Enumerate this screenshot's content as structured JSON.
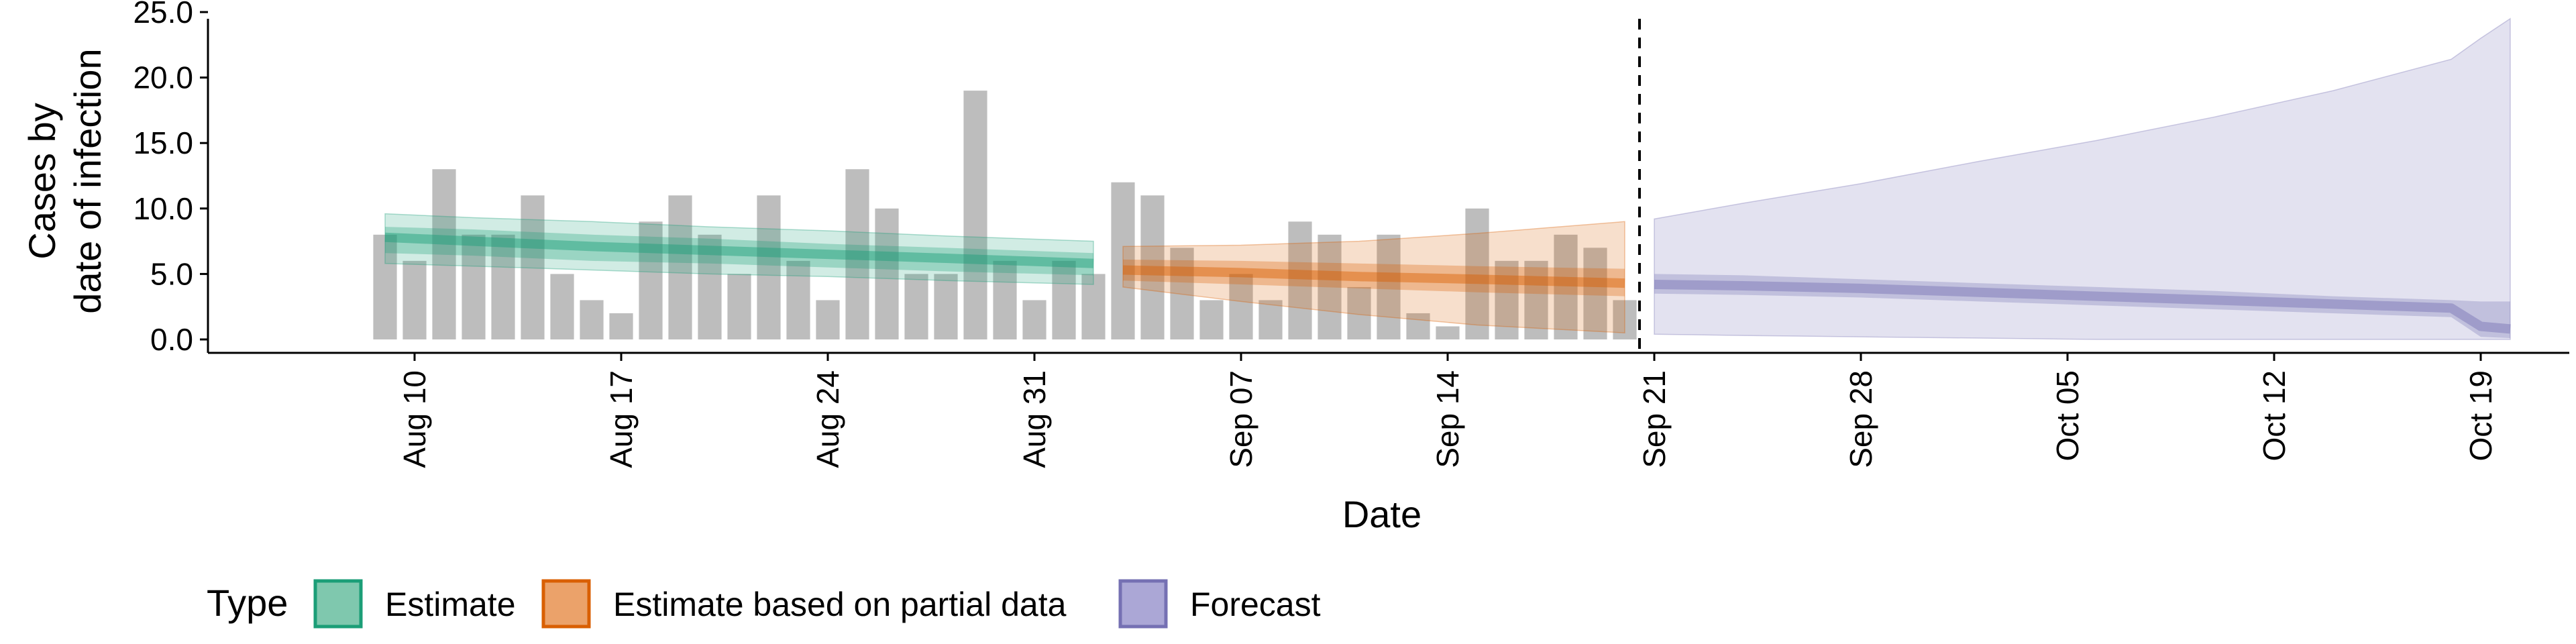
{
  "chart_data": {
    "type": "bar",
    "title": "",
    "xlabel": "Date",
    "ylabel_lines": [
      "Cases by",
      "date of infection"
    ],
    "ylim": [
      0,
      25
    ],
    "y_ticks": [
      0,
      5,
      10,
      15,
      20,
      25
    ],
    "y_tick_labels": [
      "0.0",
      "5.0",
      "10.0",
      "15.0",
      "20.0",
      "25.0"
    ],
    "x_range": [
      "2020-08-03",
      "2020-10-22"
    ],
    "x_ticks": [
      "2020-08-10",
      "2020-08-17",
      "2020-08-24",
      "2020-08-31",
      "2020-09-07",
      "2020-09-14",
      "2020-09-21",
      "2020-09-28",
      "2020-10-05",
      "2020-10-12",
      "2020-10-19"
    ],
    "x_tick_labels": [
      "Aug 10",
      "Aug 17",
      "Aug 24",
      "Aug 31",
      "Sep 07",
      "Sep 14",
      "Sep 21",
      "Sep 28",
      "Oct 05",
      "Oct 12",
      "Oct 19"
    ],
    "forecast_cutoff": "2020-09-20",
    "reported_cases": {
      "dates": [
        "2020-08-09",
        "2020-08-10",
        "2020-08-11",
        "2020-08-12",
        "2020-08-13",
        "2020-08-14",
        "2020-08-15",
        "2020-08-16",
        "2020-08-17",
        "2020-08-18",
        "2020-08-19",
        "2020-08-20",
        "2020-08-21",
        "2020-08-22",
        "2020-08-23",
        "2020-08-24",
        "2020-08-25",
        "2020-08-26",
        "2020-08-27",
        "2020-08-28",
        "2020-08-29",
        "2020-08-30",
        "2020-08-31",
        "2020-09-01",
        "2020-09-02",
        "2020-09-03",
        "2020-09-04",
        "2020-09-05",
        "2020-09-06",
        "2020-09-07",
        "2020-09-08",
        "2020-09-09",
        "2020-09-10",
        "2020-09-11",
        "2020-09-12",
        "2020-09-13",
        "2020-09-14",
        "2020-09-15",
        "2020-09-16",
        "2020-09-17",
        "2020-09-18",
        "2020-09-19",
        "2020-09-20"
      ],
      "values": [
        8,
        6,
        13,
        8,
        8,
        11,
        5,
        3,
        2,
        9,
        11,
        8,
        5,
        11,
        6,
        3,
        13,
        10,
        5,
        5,
        19,
        6,
        3,
        6,
        5,
        12,
        11,
        7,
        3,
        5,
        3,
        9,
        8,
        4,
        8,
        2,
        1,
        10,
        6,
        6,
        8,
        7,
        3
      ]
    },
    "series": [
      {
        "name": "Estimate",
        "color": "#1b9e77",
        "dates": [
          "2020-08-09",
          "2020-08-12",
          "2020-08-16",
          "2020-08-20",
          "2020-08-24",
          "2020-08-28",
          "2020-09-02"
        ],
        "median": [
          7.8,
          7.5,
          7.1,
          6.8,
          6.5,
          6.2,
          5.8
        ],
        "inner_lower": [
          6.6,
          6.4,
          6.0,
          5.8,
          5.5,
          5.2,
          4.9
        ],
        "inner_upper": [
          8.6,
          8.4,
          8.0,
          7.7,
          7.3,
          7.0,
          6.6
        ],
        "outer_lower": [
          5.8,
          5.6,
          5.3,
          5.0,
          4.8,
          4.5,
          4.2
        ],
        "outer_upper": [
          9.6,
          9.3,
          9.0,
          8.6,
          8.3,
          7.9,
          7.5
        ]
      },
      {
        "name": "Estimate based on partial data",
        "color": "#d95f02",
        "dates": [
          "2020-09-03",
          "2020-09-07",
          "2020-09-11",
          "2020-09-15",
          "2020-09-20"
        ],
        "median": [
          5.3,
          5.1,
          4.8,
          4.6,
          4.3
        ],
        "inner_lower": [
          4.5,
          4.2,
          3.9,
          3.6,
          3.3
        ],
        "inner_upper": [
          6.1,
          6.0,
          5.8,
          5.6,
          5.4
        ],
        "outer_lower": [
          4.0,
          2.9,
          1.9,
          1.1,
          0.5
        ],
        "outer_upper": [
          7.1,
          7.2,
          7.5,
          8.1,
          9.0
        ]
      },
      {
        "name": "Forecast",
        "color": "#7570b3",
        "dates": [
          "2020-09-21",
          "2020-09-24",
          "2020-09-28",
          "2020-10-02",
          "2020-10-06",
          "2020-10-10",
          "2020-10-14",
          "2020-10-18",
          "2020-10-19",
          "2020-10-20"
        ],
        "median": [
          4.2,
          4.1,
          3.9,
          3.6,
          3.3,
          3.0,
          2.7,
          2.4,
          1.0,
          0.8
        ],
        "inner_lower": [
          3.5,
          3.4,
          3.2,
          2.9,
          2.6,
          2.3,
          2.0,
          1.7,
          0.2,
          0.1
        ],
        "inner_upper": [
          5.0,
          4.9,
          4.6,
          4.3,
          4.0,
          3.7,
          3.3,
          3.0,
          2.9,
          2.9
        ],
        "outer_lower": [
          0.4,
          0.3,
          0.2,
          0.1,
          0.0,
          0.0,
          0.0,
          0.0,
          0.0,
          0.0
        ],
        "outer_upper": [
          9.2,
          10.4,
          11.9,
          13.6,
          15.2,
          17.0,
          19.0,
          21.4,
          23.0,
          24.5
        ]
      }
    ],
    "legend": {
      "title": "Type",
      "position": "bottom-left",
      "items": [
        {
          "label": "Estimate",
          "fill": "#7fc8ae",
          "stroke": "#1b9e77"
        },
        {
          "label": "Estimate based on partial data",
          "fill": "#eba26a",
          "stroke": "#d95f02"
        },
        {
          "label": "Forecast",
          "fill": "#aba7d6",
          "stroke": "#7570b3"
        }
      ]
    },
    "grid": false
  }
}
